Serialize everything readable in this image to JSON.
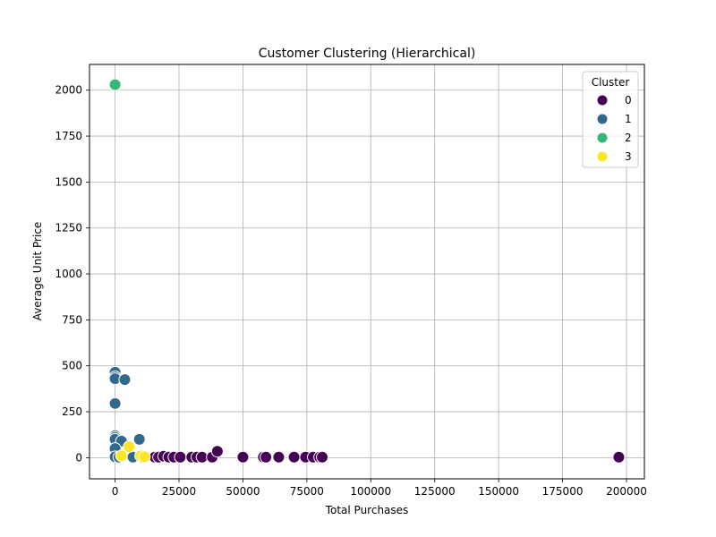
{
  "chart_data": {
    "type": "scatter",
    "title": "Customer Clustering (Hierarchical)",
    "xlabel": "Total Purchases",
    "ylabel": "Average Unit Price",
    "xlim": [
      -10000,
      207000
    ],
    "ylim": [
      -115,
      2140
    ],
    "xticks": [
      0,
      25000,
      50000,
      75000,
      100000,
      125000,
      150000,
      175000,
      200000
    ],
    "yticks": [
      0,
      250,
      500,
      750,
      1000,
      1250,
      1500,
      1750,
      2000
    ],
    "grid": true,
    "legend": {
      "title": "Cluster",
      "placement": "top-right"
    },
    "series": [
      {
        "name": "0",
        "color": "#440154",
        "points": [
          [
            15500,
            3
          ],
          [
            17000,
            3
          ],
          [
            19000,
            8
          ],
          [
            21000,
            3
          ],
          [
            23000,
            3
          ],
          [
            25500,
            3
          ],
          [
            30000,
            3
          ],
          [
            32000,
            3
          ],
          [
            34000,
            3
          ],
          [
            38000,
            3
          ],
          [
            40000,
            35
          ],
          [
            50000,
            3
          ],
          [
            58000,
            3
          ],
          [
            59000,
            3
          ],
          [
            64000,
            3
          ],
          [
            70000,
            3
          ],
          [
            74500,
            3
          ],
          [
            77500,
            3
          ],
          [
            80000,
            3
          ],
          [
            81000,
            3
          ],
          [
            197000,
            3
          ]
        ]
      },
      {
        "name": "1",
        "color": "#31688e",
        "points": [
          [
            0,
            465
          ],
          [
            0,
            440
          ],
          [
            0,
            430
          ],
          [
            3800,
            425
          ],
          [
            0,
            295
          ],
          [
            0,
            120
          ],
          [
            0,
            110
          ],
          [
            0,
            100
          ],
          [
            2500,
            90
          ],
          [
            9500,
            100
          ],
          [
            0,
            50
          ],
          [
            0,
            5
          ],
          [
            1500,
            3
          ],
          [
            7000,
            3
          ],
          [
            10500,
            3
          ]
        ]
      },
      {
        "name": "2",
        "color": "#35b779",
        "points": [
          [
            0,
            2030
          ]
        ]
      },
      {
        "name": "3",
        "color": "#fde725",
        "points": [
          [
            2500,
            10
          ],
          [
            5500,
            60
          ],
          [
            10000,
            10
          ],
          [
            11500,
            5
          ]
        ]
      }
    ]
  }
}
